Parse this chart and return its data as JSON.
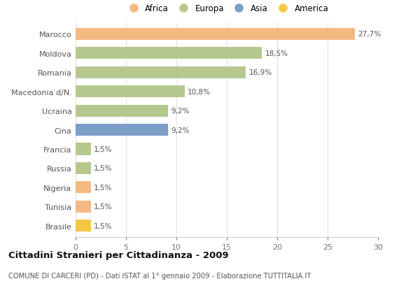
{
  "categories": [
    "Marocco",
    "Moldova",
    "Romania",
    "Macedonia d/N.",
    "Ucraina",
    "Cina",
    "Francia",
    "Russia",
    "Nigeria",
    "Tunisia",
    "Brasile"
  ],
  "values": [
    27.7,
    18.5,
    16.9,
    10.8,
    9.2,
    9.2,
    1.5,
    1.5,
    1.5,
    1.5,
    1.5
  ],
  "labels": [
    "27,7%",
    "18,5%",
    "16,9%",
    "10,8%",
    "9,2%",
    "9,2%",
    "1,5%",
    "1,5%",
    "1,5%",
    "1,5%",
    "1,5%"
  ],
  "colors": [
    "#F5B982",
    "#B5C98E",
    "#B5C98E",
    "#B5C98E",
    "#B5C98E",
    "#7B9DC7",
    "#B5C98E",
    "#B5C98E",
    "#F5B982",
    "#F5B982",
    "#F5C842"
  ],
  "legend_labels": [
    "Africa",
    "Europa",
    "Asia",
    "America"
  ],
  "legend_colors": [
    "#F5B982",
    "#B5C98E",
    "#7B9DC7",
    "#F5C842"
  ],
  "title": "Cittadini Stranieri per Cittadinanza - 2009",
  "subtitle": "COMUNE DI CARCERI (PD) - Dati ISTAT al 1° gennaio 2009 - Elaborazione TUTTITALIA.IT",
  "xlim": [
    0,
    30
  ],
  "xticks": [
    0,
    5,
    10,
    15,
    20,
    25,
    30
  ],
  "background_color": "#ffffff",
  "bar_height": 0.62
}
